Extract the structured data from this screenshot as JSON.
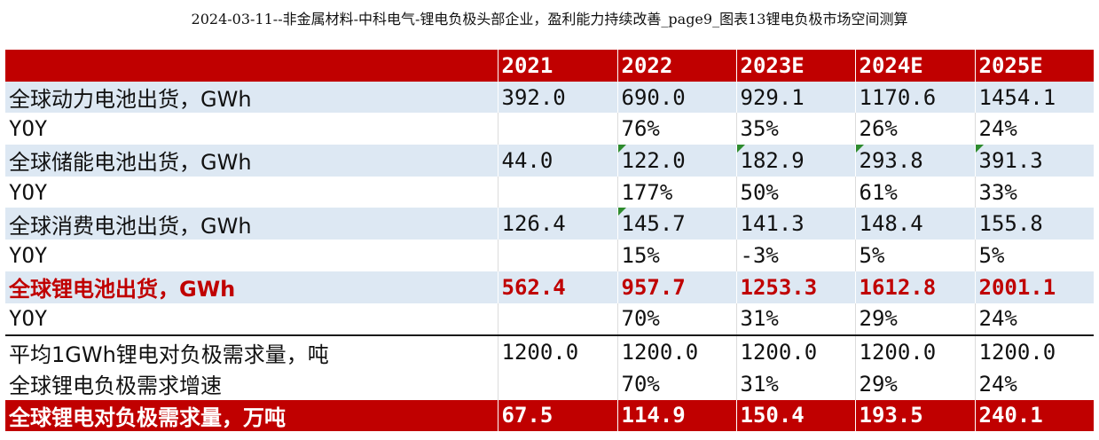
{
  "title": "2024-03-11--非金属材料-中科电气-锂电负极头部企业，盈利能力持续改善_page9_图表13锂电负极市场空间测算",
  "header": [
    "",
    "2021",
    "2022",
    "2023E",
    "2024E",
    "2025E"
  ],
  "rows": [
    {
      "label": "全球动力电池出货，GWh",
      "values": [
        "392.0",
        "690.0",
        "929.1",
        "1170.6",
        "1454.1"
      ]
    },
    {
      "label": "YOY",
      "values": [
        "",
        "76%",
        "35%",
        "26%",
        "24%"
      ]
    },
    {
      "label": "全球储能电池出货，GWh",
      "values": [
        "44.0",
        "122.0",
        "182.9",
        "293.8",
        "391.3"
      ]
    },
    {
      "label": "YOY",
      "values": [
        "",
        "177%",
        "50%",
        "61%",
        "33%"
      ]
    },
    {
      "label": "全球消费电池出货，GWh",
      "values": [
        "126.4",
        "145.7",
        "141.3",
        "148.4",
        "155.8"
      ]
    },
    {
      "label": "YOY",
      "values": [
        "",
        "15%",
        "-3%",
        "5%",
        "5%"
      ]
    },
    {
      "label": "全球锂电池出货，GWh",
      "values": [
        "562.4",
        "957.7",
        "1253.3",
        "1612.8",
        "2001.1"
      ]
    },
    {
      "label": "YOY",
      "values": [
        "",
        "70%",
        "31%",
        "29%",
        "24%"
      ]
    },
    {
      "label": "平均1GWh锂电对负极需求量，吨",
      "values": [
        "1200.0",
        "1200.0",
        "1200.0",
        "1200.0",
        "1200.0"
      ]
    },
    {
      "label": "全球锂电负极需求增速",
      "values": [
        "",
        "70%",
        "31%",
        "29%",
        "24%"
      ]
    },
    {
      "label": "全球锂电对负极需求量，万吨",
      "values": [
        "67.5",
        "114.9",
        "150.4",
        "193.5",
        "240.1"
      ]
    }
  ],
  "colors": {
    "header_bg": "#c00000",
    "band_bg": "#dde8f3",
    "highlight_text": "#c00000",
    "comment_marker": "#2e8b2e"
  }
}
